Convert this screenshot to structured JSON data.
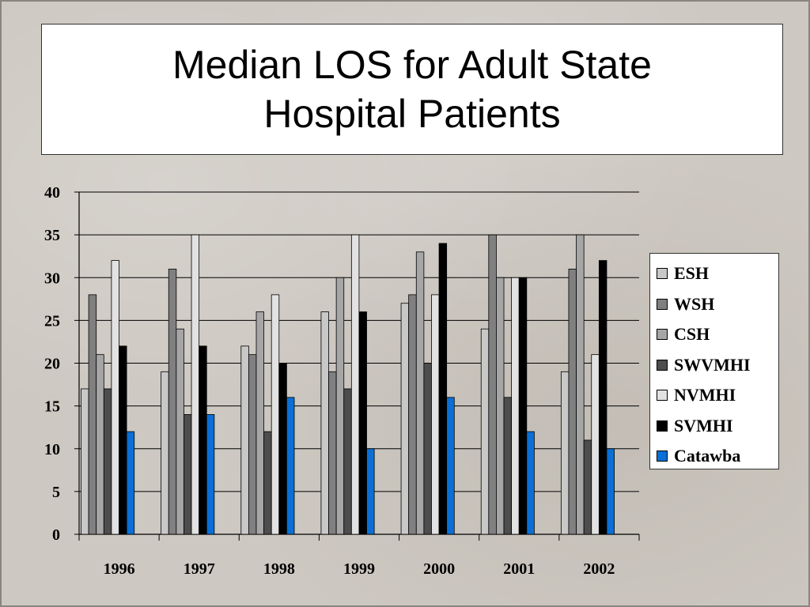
{
  "title": "Median LOS for Adult State Hospital Patients",
  "chart_data": {
    "type": "bar",
    "title": "Median LOS for Adult State Hospital Patients",
    "xlabel": "",
    "ylabel": "",
    "categories": [
      "1996",
      "1997",
      "1998",
      "1999",
      "2000",
      "2001",
      "2002"
    ],
    "ylim": [
      0,
      40
    ],
    "yticks": [
      "0",
      "5",
      "10",
      "15",
      "20",
      "25",
      "30",
      "35",
      "40"
    ],
    "grid": true,
    "legend_position": "right",
    "series": [
      {
        "name": "ESH",
        "color": "#c8c8c8",
        "values": [
          17,
          19,
          22,
          26,
          27,
          24,
          19
        ]
      },
      {
        "name": "WSH",
        "color": "#808080",
        "values": [
          28,
          31,
          21,
          19,
          28,
          35,
          31
        ]
      },
      {
        "name": "CSH",
        "color": "#a6a6a6",
        "values": [
          21,
          24,
          26,
          30,
          33,
          30,
          35
        ]
      },
      {
        "name": "SWVMHI",
        "color": "#4d4d4d",
        "values": [
          17,
          14,
          12,
          17,
          20,
          16,
          11
        ]
      },
      {
        "name": "NVMHI",
        "color": "#e2e2e2",
        "values": [
          32,
          35,
          28,
          35,
          28,
          30,
          21
        ]
      },
      {
        "name": "SVMHI",
        "color": "#000000",
        "values": [
          22,
          22,
          20,
          26,
          34,
          30,
          32
        ]
      },
      {
        "name": "Catawba",
        "color": "#0a6fd6",
        "values": [
          12,
          14,
          16,
          10,
          16,
          12,
          10
        ]
      }
    ]
  }
}
